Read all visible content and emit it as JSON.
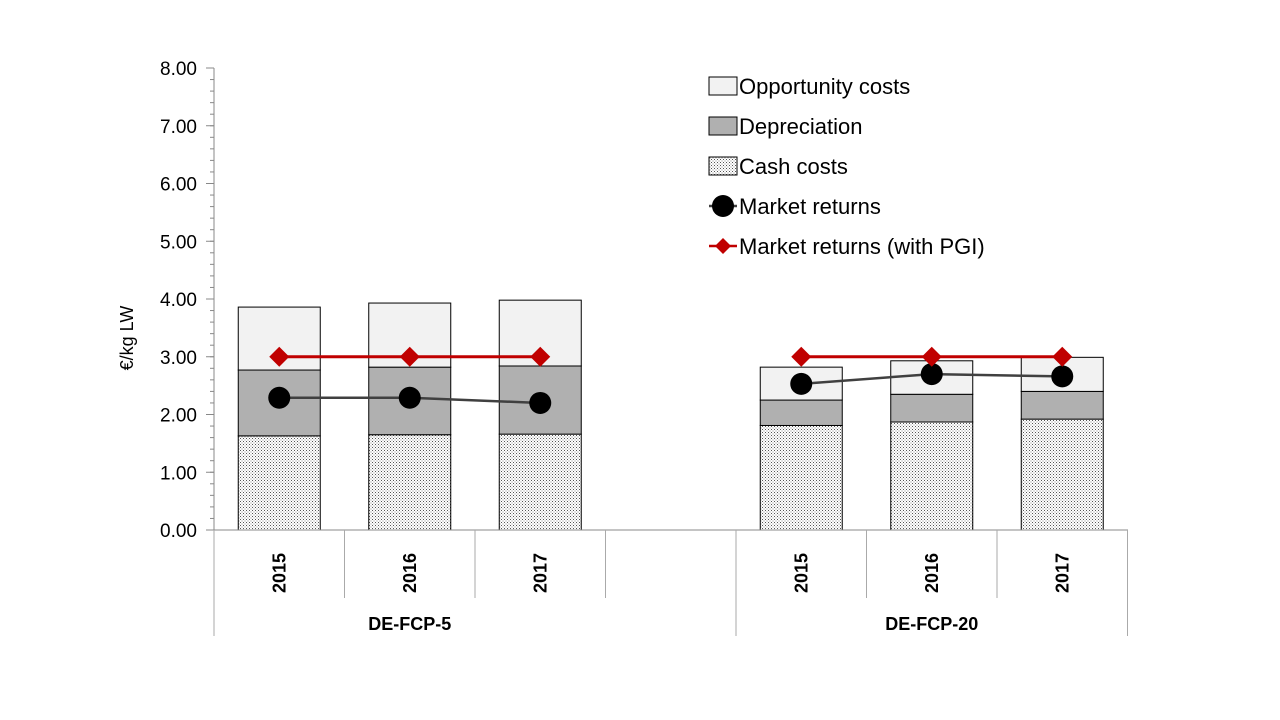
{
  "chart_data": {
    "type": "bar",
    "ylabel": "€/kg LW",
    "ylim": [
      0,
      8
    ],
    "yticks": [
      "0.00",
      "1.00",
      "2.00",
      "3.00",
      "4.00",
      "5.00",
      "6.00",
      "7.00",
      "8.00"
    ],
    "groups": [
      {
        "name": "DE-FCP-5",
        "categories": [
          "2015",
          "2016",
          "2017"
        ]
      },
      {
        "name": "DE-FCP-20",
        "categories": [
          "2015",
          "2016",
          "2017"
        ]
      }
    ],
    "series": [
      {
        "name": "Cash costs",
        "kind": "stacked-bar",
        "fill": "dots",
        "values": [
          1.63,
          1.65,
          1.66,
          1.81,
          1.87,
          1.92
        ]
      },
      {
        "name": "Depreciation",
        "kind": "stacked-bar",
        "color": "#b0b0b0",
        "values": [
          1.14,
          1.17,
          1.18,
          0.44,
          0.48,
          0.48
        ]
      },
      {
        "name": "Opportunity costs",
        "kind": "stacked-bar",
        "color": "#f2f2f2",
        "values": [
          1.09,
          1.11,
          1.14,
          0.57,
          0.58,
          0.59
        ]
      },
      {
        "name": "Market returns",
        "kind": "line",
        "marker": "circle",
        "color": "#404040",
        "values": [
          2.29,
          2.29,
          2.2,
          2.53,
          2.7,
          2.66
        ]
      },
      {
        "name": "Market returns (with PGI)",
        "kind": "line",
        "marker": "diamond",
        "color": "#c00000",
        "values": [
          3.0,
          3.0,
          3.0,
          3.0,
          3.0,
          3.0
        ]
      }
    ],
    "legend": {
      "position": "top-right",
      "entries": [
        "Opportunity costs",
        "Depreciation",
        "Cash costs",
        "Market returns",
        "Market returns (with PGI)"
      ]
    }
  }
}
